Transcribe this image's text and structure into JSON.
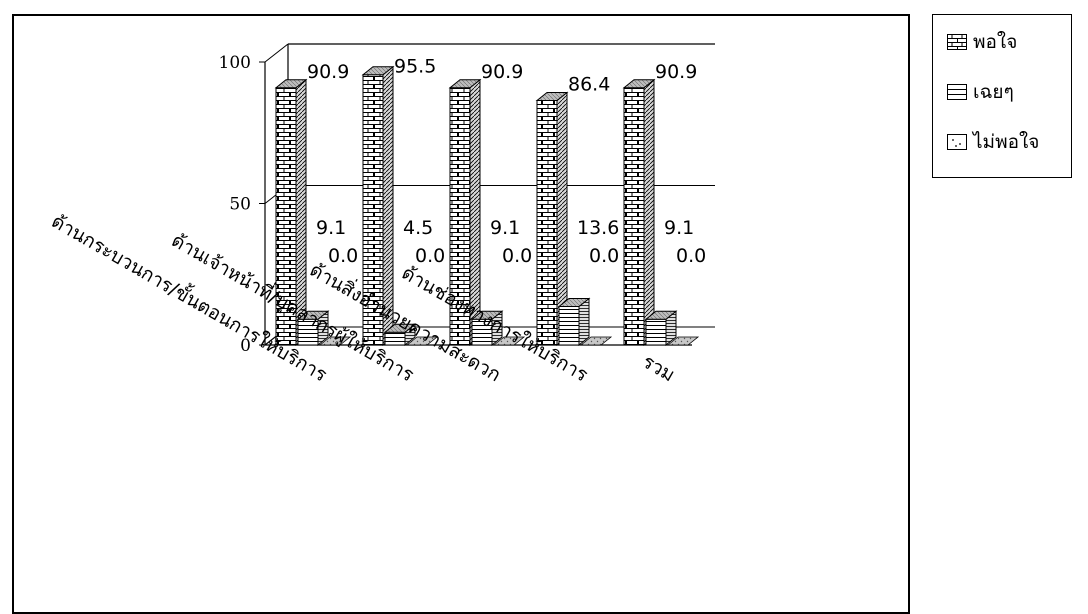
{
  "chart_data": {
    "type": "bar",
    "title": "",
    "xlabel": "",
    "ylabel": "",
    "ylim": [
      0,
      100
    ],
    "yticks": [
      0,
      50,
      100
    ],
    "grid": true,
    "legend_position": "right",
    "categories": [
      "ด้านกระบวนการ/ขั้นตอนการให้บริการ",
      "ด้านเจ้าหน้าที่/บุคลากรผู้ให้บริการ",
      "ด้านสิ่งอำนวยความสะดวก",
      "ด้านช่องทางการให้บริการ",
      "รวม"
    ],
    "series": [
      {
        "name": "พอใจ",
        "values": [
          90.9,
          95.5,
          90.9,
          86.4,
          90.9
        ],
        "labels": [
          "90.9",
          "95.5",
          "90.9",
          "86.4",
          "90.9"
        ]
      },
      {
        "name": "เฉยๆ",
        "values": [
          9.1,
          4.5,
          9.1,
          13.6,
          9.1
        ],
        "labels": [
          "9.1",
          "4.5",
          "9.1",
          "13.6",
          "9.1"
        ]
      },
      {
        "name": "ไม่พอใจ",
        "values": [
          0.0,
          0.0,
          0.0,
          0.0,
          0.0
        ],
        "labels": [
          "0.0",
          "0.0",
          "0.0",
          "0.0",
          "0.0"
        ]
      }
    ]
  }
}
